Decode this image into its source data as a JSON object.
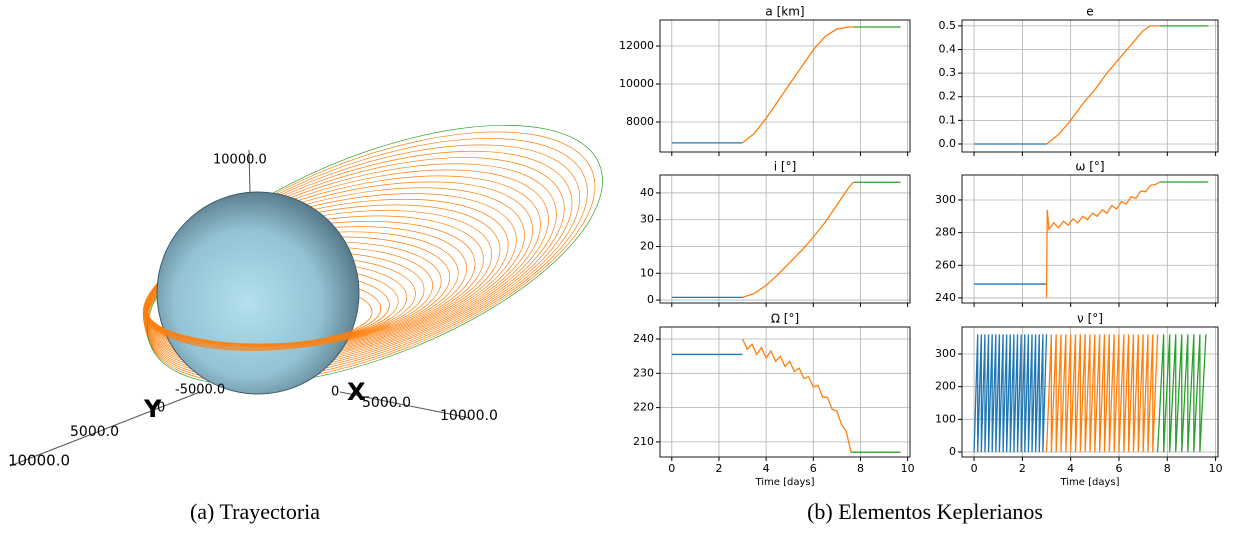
{
  "trajectory": {
    "axis_labels": [
      "10000.0",
      "-5000.0",
      "0",
      "X",
      "5000.0",
      "10000.0",
      "Y",
      "0",
      "5000.0",
      "10000.0"
    ],
    "caption": "(a) Trayectoria"
  },
  "elements_caption": "(b) Elementos Keplerianos",
  "chart_data": [
    {
      "type": "line",
      "title": "a [km]",
      "xlim": [
        -0.5,
        10.1
      ],
      "xticks": [
        0,
        2,
        4,
        6,
        8,
        10
      ],
      "xtick_labels": false,
      "ylim": [
        6420,
        13370
      ],
      "yticks": [
        8000,
        10000,
        12000
      ],
      "grid": true,
      "series": [
        {
          "color": "#1f77b4",
          "x": [
            0,
            3
          ],
          "values": [
            6900,
            6900
          ]
        },
        {
          "color": "#ff7f0e",
          "x": [
            3,
            3.5,
            4,
            4.5,
            5,
            5.5,
            6,
            6.5,
            7,
            7.5,
            7.7
          ],
          "values": [
            6900,
            7400,
            8200,
            9100,
            10000,
            10900,
            11800,
            12500,
            12900,
            13000,
            13000
          ]
        },
        {
          "color": "#2ca02c",
          "x": [
            7.7,
            9.7
          ],
          "values": [
            13000,
            13000
          ]
        }
      ]
    },
    {
      "type": "line",
      "title": "e",
      "xlim": [
        -0.5,
        10.1
      ],
      "xticks": [
        0,
        2,
        4,
        6,
        8,
        10
      ],
      "xtick_labels": false,
      "ylim": [
        -0.034,
        0.525
      ],
      "yticks": [
        {
          "value": 0,
          "label": "0.0"
        },
        0.1,
        0.2,
        0.3,
        0.4,
        0.5
      ],
      "grid": true,
      "series": [
        {
          "color": "#1f77b4",
          "x": [
            0,
            3
          ],
          "values": [
            0,
            0
          ]
        },
        {
          "color": "#ff7f0e",
          "x": [
            3,
            3.5,
            4,
            4.5,
            5,
            5.5,
            6,
            6.5,
            7,
            7.3,
            7.7
          ],
          "values": [
            0,
            0.04,
            0.1,
            0.17,
            0.23,
            0.3,
            0.36,
            0.42,
            0.48,
            0.5,
            0.5
          ]
        },
        {
          "color": "#2ca02c",
          "x": [
            7.7,
            9.7
          ],
          "values": [
            0.5,
            0.5
          ]
        }
      ]
    },
    {
      "type": "line",
      "title": "i [°]",
      "xlim": [
        -0.5,
        10.1
      ],
      "xticks": [
        0,
        2,
        4,
        6,
        8,
        10
      ],
      "xtick_labels": false,
      "ylim": [
        -1.1,
        46.7
      ],
      "yticks": [
        0,
        10,
        20,
        30,
        40
      ],
      "grid": true,
      "series": [
        {
          "color": "#1f77b4",
          "x": [
            0,
            3
          ],
          "values": [
            1,
            1
          ]
        },
        {
          "color": "#ff7f0e",
          "x": [
            3,
            3.5,
            4,
            4.5,
            5,
            5.5,
            6,
            6.5,
            7,
            7.5,
            7.7
          ],
          "values": [
            1,
            2.5,
            5.5,
            9.5,
            14,
            18.5,
            23.5,
            29,
            35.5,
            42,
            44
          ]
        },
        {
          "color": "#2ca02c",
          "x": [
            7.7,
            9.7
          ],
          "values": [
            44,
            44
          ]
        }
      ]
    },
    {
      "type": "line",
      "title": "ω [°]",
      "xlim": [
        -0.5,
        10.1
      ],
      "xticks": [
        0,
        2,
        4,
        6,
        8,
        10
      ],
      "xtick_labels": false,
      "ylim": [
        236.9,
        315.3
      ],
      "yticks": [
        240,
        260,
        280,
        300
      ],
      "grid": true,
      "series": [
        {
          "color": "#1f77b4",
          "x": [
            0,
            3
          ],
          "values": [
            248.5,
            248.5
          ]
        },
        {
          "color": "#ff7f0e",
          "x": [
            3,
            3.03,
            3.1,
            3.3,
            3.5,
            3.7,
            3.9,
            4.1,
            4.3,
            4.5,
            4.7,
            4.9,
            5.1,
            5.3,
            5.5,
            5.7,
            5.9,
            6.1,
            6.3,
            6.5,
            6.7,
            6.9,
            7.1,
            7.3,
            7.5,
            7.7
          ],
          "values": [
            240,
            294,
            282,
            286,
            283,
            287,
            284.5,
            288.5,
            286,
            290,
            288,
            292,
            290,
            294,
            292,
            296.5,
            294.5,
            299,
            297.5,
            302,
            301,
            305.5,
            305,
            309,
            309.5,
            311
          ]
        },
        {
          "color": "#2ca02c",
          "x": [
            7.7,
            9.7
          ],
          "values": [
            311,
            311
          ]
        }
      ]
    },
    {
      "type": "line",
      "title": "Ω [°]",
      "xlabel": "Time [days]",
      "xlim": [
        -0.5,
        10.1
      ],
      "xticks": [
        0,
        2,
        4,
        6,
        8,
        10
      ],
      "xtick_labels": true,
      "ylim": [
        205.6,
        243.5
      ],
      "yticks": [
        210,
        220,
        230,
        240
      ],
      "grid": true,
      "series": [
        {
          "color": "#1f77b4",
          "x": [
            0,
            3
          ],
          "values": [
            235.5,
            235.5
          ]
        },
        {
          "color": "#ff7f0e",
          "x": [
            3,
            3.2,
            3.4,
            3.6,
            3.8,
            4,
            4.2,
            4.4,
            4.6,
            4.8,
            5,
            5.2,
            5.4,
            5.6,
            5.8,
            6,
            6.2,
            6.4,
            6.6,
            6.8,
            7,
            7.2,
            7.4,
            7.6
          ],
          "values": [
            240,
            237,
            238.5,
            235.5,
            237.5,
            234.5,
            236.5,
            233.5,
            235,
            232,
            233.5,
            230.5,
            231.5,
            228.5,
            229,
            226,
            226.5,
            223,
            223,
            219.5,
            219,
            215,
            213,
            207
          ]
        },
        {
          "color": "#2ca02c",
          "x": [
            7.6,
            9.7
          ],
          "values": [
            207,
            207
          ]
        }
      ]
    },
    {
      "type": "line",
      "title": "ν [°]",
      "xlabel": "Time [days]",
      "xlim": [
        -0.5,
        10.1
      ],
      "xticks": [
        0,
        2,
        4,
        6,
        8,
        10
      ],
      "xtick_labels": true,
      "ylim": [
        -15.3,
        382.6
      ],
      "yticks": [
        0,
        100,
        200,
        300
      ],
      "grid": true,
      "series": [
        {
          "color": "#1f77b4",
          "x": [
            0,
            0.15,
            0.15,
            0.3,
            0.3,
            0.45,
            0.45,
            0.6,
            0.6,
            0.75,
            0.75,
            0.9,
            0.9,
            1.05,
            1.05,
            1.2,
            1.2,
            1.35,
            1.35,
            1.5,
            1.5,
            1.65,
            1.65,
            1.8,
            1.8,
            1.95,
            1.95,
            2.1,
            2.1,
            2.25,
            2.25,
            2.4,
            2.4,
            2.55,
            2.55,
            2.7,
            2.7,
            2.85,
            2.85,
            3.0
          ],
          "values": [
            0,
            360,
            0,
            360,
            0,
            360,
            0,
            360,
            0,
            360,
            0,
            360,
            0,
            360,
            0,
            360,
            0,
            360,
            0,
            360,
            0,
            360,
            0,
            360,
            0,
            360,
            0,
            360,
            0,
            360,
            0,
            360,
            0,
            360,
            0,
            360,
            0,
            360,
            0,
            360
          ]
        },
        {
          "color": "#ff7f0e",
          "x": [
            3.0,
            3.2,
            3.2,
            3.4,
            3.4,
            3.6,
            3.6,
            3.8,
            3.8,
            4.0,
            4.0,
            4.2,
            4.2,
            4.4,
            4.4,
            4.6,
            4.6,
            4.8,
            4.8,
            5.0,
            5.0,
            5.2,
            5.2,
            5.4,
            5.4,
            5.6,
            5.6,
            5.8,
            5.8,
            6.0,
            6.0,
            6.2,
            6.2,
            6.4,
            6.4,
            6.6,
            6.6,
            6.8,
            6.8,
            7.0,
            7.0,
            7.2,
            7.2,
            7.4,
            7.4,
            7.6
          ],
          "values": [
            0,
            360,
            0,
            360,
            0,
            360,
            0,
            360,
            0,
            360,
            0,
            360,
            0,
            360,
            0,
            360,
            0,
            360,
            0,
            360,
            0,
            360,
            0,
            360,
            0,
            360,
            0,
            360,
            0,
            360,
            0,
            360,
            0,
            360,
            0,
            360,
            0,
            360,
            0,
            360,
            0,
            360,
            0,
            360,
            0,
            360
          ]
        },
        {
          "color": "#2ca02c",
          "x": [
            7.6,
            7.85,
            7.85,
            8.1,
            8.1,
            8.35,
            8.35,
            8.6,
            8.6,
            8.85,
            8.85,
            9.1,
            9.1,
            9.35,
            9.35,
            9.6
          ],
          "values": [
            0,
            360,
            0,
            360,
            0,
            360,
            0,
            360,
            0,
            360,
            0,
            360,
            0,
            360,
            0,
            360
          ]
        }
      ]
    }
  ]
}
